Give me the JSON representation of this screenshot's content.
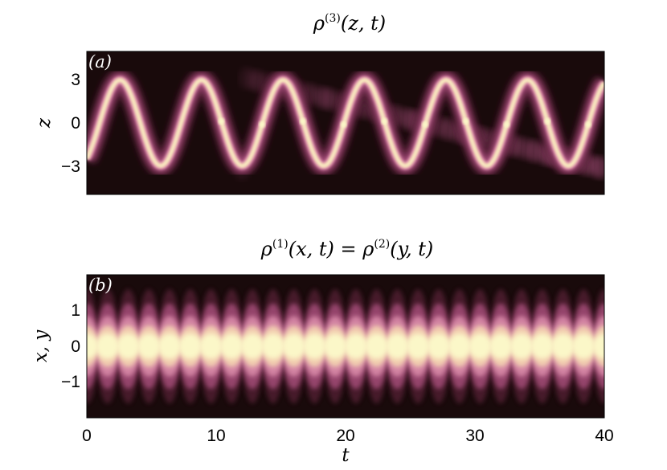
{
  "chart_data": [
    {
      "type": "heatmap",
      "panel_label": "(a)",
      "title": "ρ(3)(z, t)",
      "title_base": "ρ",
      "title_sup": "(3)",
      "title_rest": "(z, t)",
      "ylabel": "z",
      "xlabel": "",
      "xlim": [
        0,
        40
      ],
      "ylim": [
        -5,
        5
      ],
      "yticks": [
        3,
        0,
        -3
      ],
      "ytick_labels": [
        "3",
        "0",
        "−3"
      ],
      "x_tick_labels_shown": false,
      "colormap": [
        "#1a0a0b",
        "#5a2038",
        "#a84f7c",
        "#d98aa8",
        "#f2cfb0",
        "#fbf7c8"
      ],
      "description_data": {
        "main_peak_center_at_t0": -2.5,
        "oscillation_amplitude": 3.0,
        "oscillation_period": 6.3,
        "secondary_noise_onset_t": 12
      }
    },
    {
      "type": "heatmap",
      "panel_label": "(b)",
      "title": "ρ(1)(x, t) = ρ(2)(y, t)",
      "title_base1": "ρ",
      "title_sup1": "(1)",
      "title_mid": "(x, t) = ",
      "title_base2": "ρ",
      "title_sup2": "(2)",
      "title_rest": "(y, t)",
      "ylabel": "x, y",
      "xlabel": "t",
      "xlim": [
        0,
        40
      ],
      "ylim": [
        -2,
        2
      ],
      "xticks": [
        0,
        10,
        20,
        30,
        40
      ],
      "xtick_labels": [
        "0",
        "10",
        "20",
        "30",
        "40"
      ],
      "yticks": [
        1,
        0,
        -1
      ],
      "ytick_labels": [
        "1",
        "0",
        "−1"
      ],
      "colormap": [
        "#1a0a0b",
        "#5a2038",
        "#a84f7c",
        "#d98aa8",
        "#f2cfb0",
        "#fbf7c8"
      ],
      "description_data": {
        "central_band_half_width": 0.5,
        "breathing_period": 1.6
      }
    }
  ]
}
